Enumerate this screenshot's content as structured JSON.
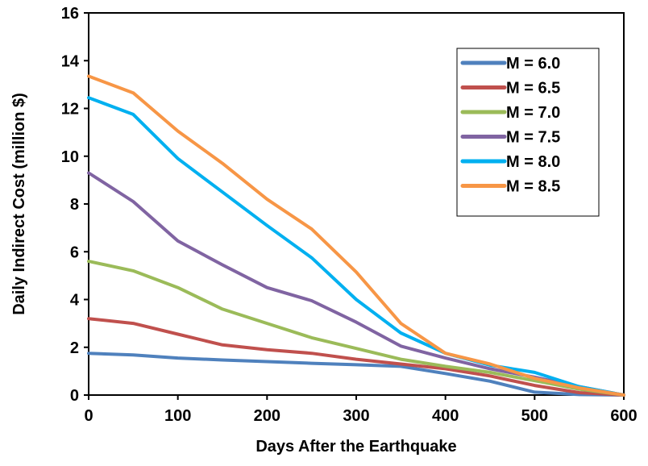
{
  "chart_data": {
    "type": "line",
    "title": "",
    "xlabel": "Days After the Earthquake",
    "ylabel": "Daily Indirect Cost (million $)",
    "xlim": [
      0,
      600
    ],
    "ylim": [
      0,
      16
    ],
    "xticks": [
      0,
      100,
      200,
      300,
      400,
      500,
      600
    ],
    "yticks": [
      0,
      2,
      4,
      6,
      8,
      10,
      12,
      14,
      16
    ],
    "grid": false,
    "legend_position": "right",
    "x": [
      0,
      50,
      100,
      150,
      200,
      250,
      300,
      350,
      400,
      450,
      500,
      550,
      600
    ],
    "series": [
      {
        "name": "M = 6.0",
        "color": "#4F81BD",
        "values": [
          1.75,
          1.68,
          1.55,
          1.47,
          1.4,
          1.33,
          1.27,
          1.2,
          0.9,
          0.58,
          0.12,
          0.02,
          0
        ]
      },
      {
        "name": "M = 6.5",
        "color": "#C0504D",
        "values": [
          3.2,
          3.0,
          2.55,
          2.1,
          1.9,
          1.75,
          1.5,
          1.3,
          1.1,
          0.8,
          0.4,
          0.1,
          0
        ]
      },
      {
        "name": "M = 7.0",
        "color": "#9BBB59",
        "values": [
          5.6,
          5.2,
          4.5,
          3.6,
          3.0,
          2.4,
          1.95,
          1.5,
          1.2,
          0.95,
          0.6,
          0.25,
          0
        ]
      },
      {
        "name": "M = 7.5",
        "color": "#8064A2",
        "values": [
          9.3,
          8.1,
          6.45,
          5.45,
          4.5,
          3.95,
          3.05,
          2.05,
          1.55,
          1.1,
          0.75,
          0.35,
          0
        ]
      },
      {
        "name": "M = 8.0",
        "color": "#00B0F0",
        "values": [
          12.45,
          11.75,
          9.9,
          8.5,
          7.1,
          5.75,
          4.0,
          2.6,
          1.75,
          1.25,
          0.95,
          0.35,
          0
        ]
      },
      {
        "name": "M = 8.5",
        "color": "#F79646",
        "values": [
          13.35,
          12.65,
          11.05,
          9.7,
          8.2,
          6.95,
          5.15,
          3.0,
          1.75,
          1.3,
          0.7,
          0.3,
          0
        ]
      }
    ]
  }
}
